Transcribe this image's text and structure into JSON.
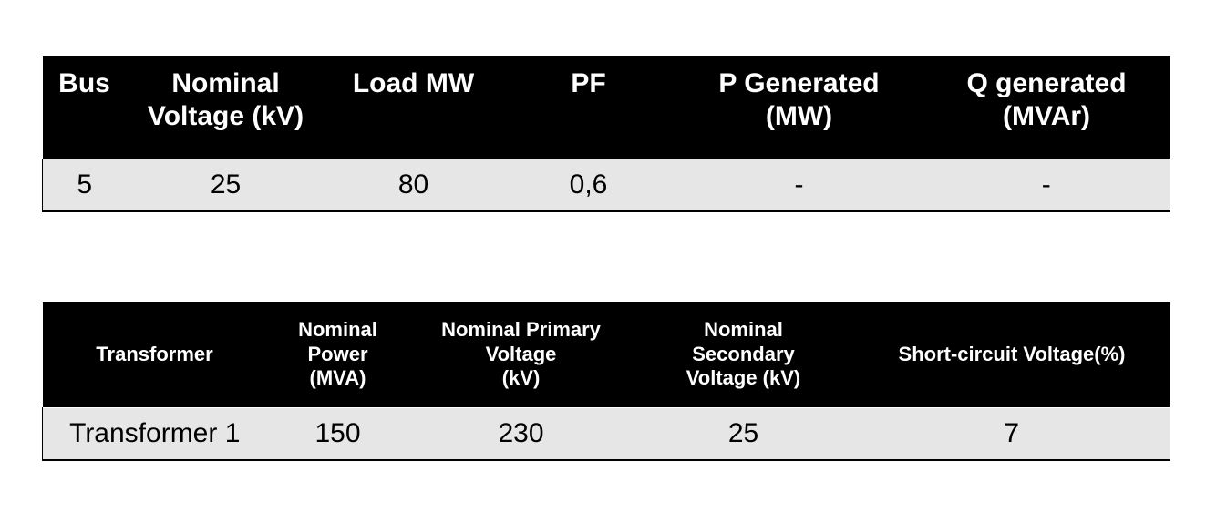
{
  "bus_table": {
    "headers": [
      {
        "line1": "Bus",
        "line2": ""
      },
      {
        "line1": "Nominal",
        "line2": "Voltage (kV)"
      },
      {
        "line1": "Load MW",
        "line2": ""
      },
      {
        "line1": "PF",
        "line2": ""
      },
      {
        "line1": "P Generated",
        "line2": "(MW)"
      },
      {
        "line1": "Q generated",
        "line2": "(MVAr)"
      }
    ],
    "rows": [
      [
        "5",
        "25",
        "80",
        "0,6",
        "-",
        "-"
      ]
    ]
  },
  "transformer_table": {
    "headers": [
      {
        "lines": [
          "Transformer"
        ]
      },
      {
        "lines": [
          "Nominal",
          "Power",
          "(MVA)"
        ]
      },
      {
        "lines": [
          "Nominal Primary",
          "Voltage",
          "(kV)"
        ]
      },
      {
        "lines": [
          "Nominal",
          "Secondary",
          "Voltage (kV)"
        ]
      },
      {
        "lines": [
          "Short-circuit Voltage(%)"
        ]
      }
    ],
    "rows": [
      [
        "Transformer 1",
        "150",
        "230",
        "25",
        "7"
      ]
    ]
  }
}
